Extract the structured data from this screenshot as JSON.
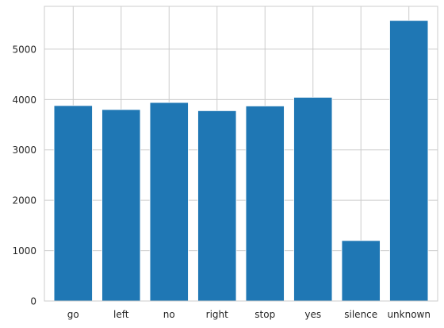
{
  "chart_data": {
    "type": "bar",
    "title": "",
    "xlabel": "",
    "ylabel": "",
    "categories": [
      "go",
      "left",
      "no",
      "right",
      "stop",
      "yes",
      "silence",
      "unknown"
    ],
    "values": [
      3880,
      3801,
      3941,
      3778,
      3872,
      4044,
      1200,
      5570
    ],
    "ylim": [
      0,
      5850
    ],
    "yticks": [
      0,
      1000,
      2000,
      3000,
      4000,
      5000
    ],
    "ytick_labels": [
      "0",
      "1000",
      "2000",
      "3000",
      "4000",
      "5000"
    ],
    "grid": true,
    "bar_color": "#1f77b4",
    "grid_color": "#cccccc",
    "spine_color": "#cccccc"
  }
}
